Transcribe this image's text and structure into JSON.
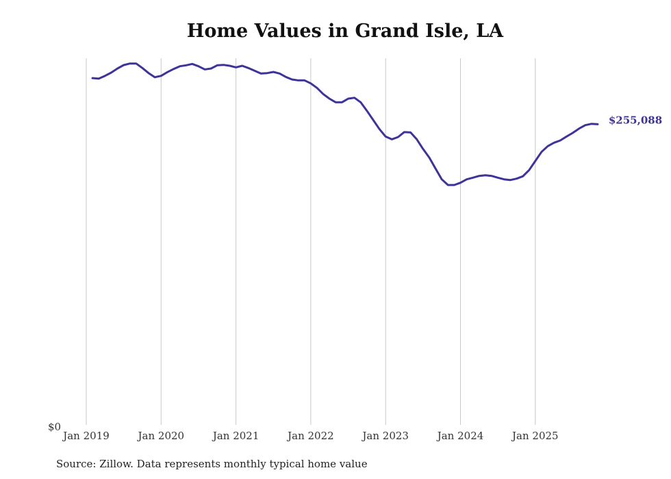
{
  "chart_data": {
    "type": "line",
    "title": "Home Values in Grand Isle, LA",
    "xlabel": "",
    "ylabel": "",
    "x_start": "Jan 2019",
    "x_frequency": "monthly",
    "x_ticks": [
      "Jan 2019",
      "Jan 2020",
      "Jan 2021",
      "Jan 2022",
      "Jan 2023",
      "Jan 2024",
      "Jan 2025"
    ],
    "y_ticks": [
      "$0"
    ],
    "ylim": [
      0,
      310800
    ],
    "grid": "vertical",
    "series": [
      {
        "name": "Typical home value",
        "color": "#3d3399",
        "end_label": "$255,088",
        "values": [
          294030,
          293630,
          295940,
          298660,
          302130,
          305030,
          306360,
          306360,
          302540,
          298260,
          294780,
          295940,
          299060,
          301730,
          304040,
          304850,
          306010,
          304040,
          301380,
          302130,
          304850,
          305200,
          304450,
          303120,
          304450,
          302540,
          300220,
          297910,
          298260,
          299240,
          297910,
          295010,
          292870,
          292120,
          292120,
          289570,
          285750,
          280540,
          276670,
          273600,
          273600,
          276670,
          277420,
          273600,
          266420,
          258720,
          251030,
          244660,
          242340,
          244250,
          248480,
          248130,
          242340,
          234240,
          226890,
          217630,
          208540,
          203740,
          203740,
          205650,
          208540,
          209930,
          211440,
          212020,
          211440,
          209930,
          208540,
          207960,
          209120,
          211090,
          216300,
          223990,
          231690,
          236560,
          239450,
          241360,
          244660,
          247730,
          251370,
          254270,
          255420,
          255088
        ]
      }
    ],
    "source": "Source: Zillow. Data represents monthly typical home value"
  }
}
